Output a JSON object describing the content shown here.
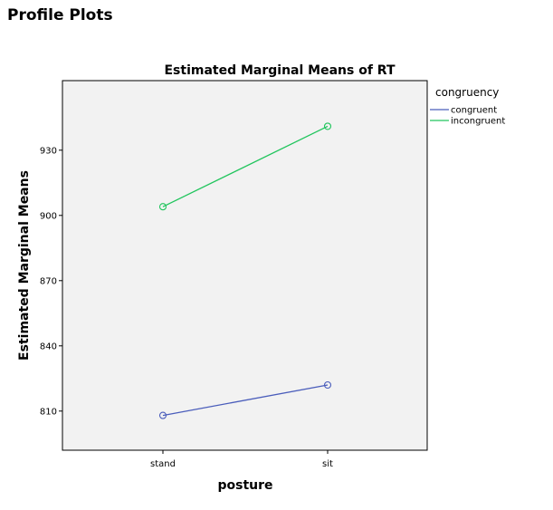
{
  "page": {
    "heading": "Profile Plots"
  },
  "chart_data": {
    "type": "line",
    "title": "Estimated Marginal Means of RT",
    "xlabel": "posture",
    "ylabel": "Estimated Marginal Means",
    "categories": [
      "stand",
      "sit"
    ],
    "yticks": [
      810,
      840,
      870,
      900,
      930
    ],
    "ylim": [
      792,
      962
    ],
    "grid": false,
    "plot_background": "#f2f2f2",
    "legend": {
      "title": "congruency",
      "placement": "right"
    },
    "series": [
      {
        "name": "congruent",
        "color": "#4a5dbb",
        "values": [
          808,
          822
        ]
      },
      {
        "name": "incongruent",
        "color": "#21c55d",
        "values": [
          904,
          941
        ]
      }
    ]
  }
}
